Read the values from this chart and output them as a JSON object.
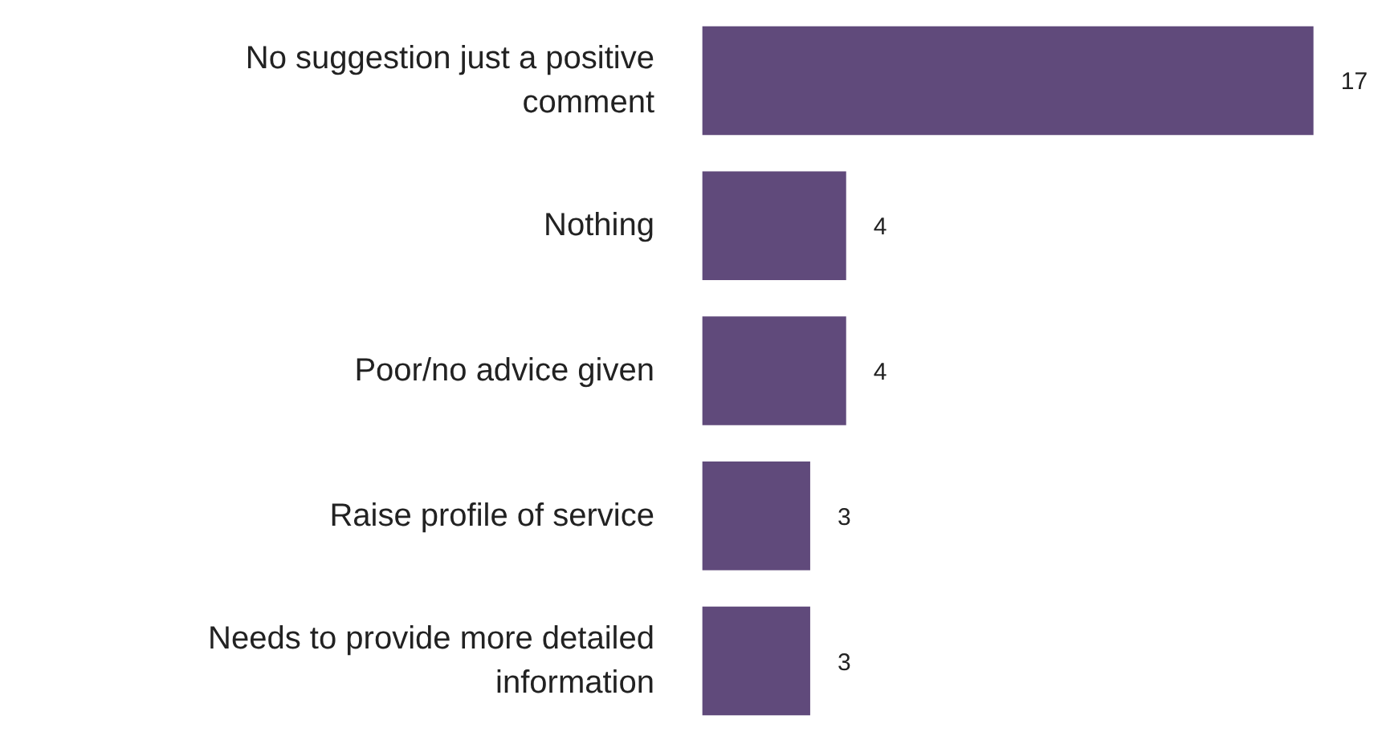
{
  "chart_data": {
    "type": "bar",
    "orientation": "horizontal",
    "categories": [
      "No suggestion just a positive comment",
      "Nothing",
      "Poor/no advice given",
      "Raise profile of service",
      "Needs to provide more detailed information"
    ],
    "values": [
      17,
      4,
      4,
      3,
      3
    ],
    "color": "#604a7b",
    "data_labels": true,
    "grid": false
  }
}
